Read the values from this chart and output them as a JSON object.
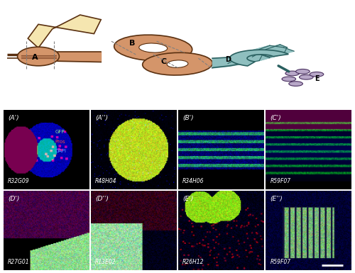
{
  "figure_width": 5.0,
  "figure_height": 3.85,
  "bg_color": "#ffffff",
  "schematic": {
    "bg_color": "#ffffff"
  },
  "image_panels": [
    {
      "label": "(A')",
      "driver": "R32G09",
      "row": 0,
      "col": 0,
      "legend": true
    },
    {
      "label": "(A'')",
      "driver": "R48H04",
      "row": 0,
      "col": 1,
      "legend": false
    },
    {
      "label": "(B')",
      "driver": "R34H06",
      "row": 0,
      "col": 2,
      "legend": false
    },
    {
      "label": "(C')",
      "driver": "R59F07",
      "row": 0,
      "col": 3,
      "legend": false
    },
    {
      "label": "(D')",
      "driver": "R27G01",
      "row": 1,
      "col": 0,
      "legend": false
    },
    {
      "label": "(D'')",
      "driver": "R13E02",
      "row": 1,
      "col": 1,
      "legend": false
    },
    {
      "label": "(E')",
      "driver": "R26H12",
      "row": 1,
      "col": 2,
      "legend": false
    },
    {
      "label": "(E'')",
      "driver": "R59F07",
      "row": 1,
      "col": 3,
      "legend": false
    }
  ],
  "legend_items": [
    {
      "text": "GFP",
      "color": "#90ee90"
    },
    {
      "text": "Pros",
      "color": "#ff4444"
    },
    {
      "text": "DAPI",
      "color": "#6699ff"
    }
  ],
  "scalebar_text": "",
  "gi_colors": {
    "proventriculus_fill": "#d4956a",
    "proventriculus_stroke": "#5a3010",
    "crop_fill": "#f5e6b0",
    "crop_stroke": "#5a3010",
    "midgut_fill": "#d4956a",
    "midgut_stroke": "#5a3010",
    "hindgut_fill": "#8fbfbf",
    "hindgut_stroke": "#2a6060",
    "rectum_fill": "#b8a8c8",
    "rectum_stroke": "#4a3060"
  }
}
